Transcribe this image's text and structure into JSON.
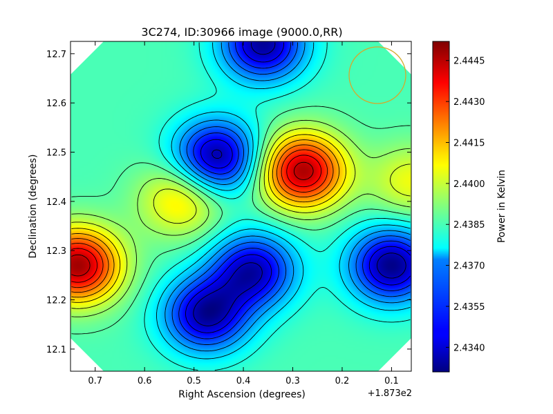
{
  "chart_data": {
    "type": "heatmap",
    "title": "3C274, ID:30966 image (9000.0,RR)",
    "xlabel": "Right Ascension (degrees)",
    "ylabel": "Declination (degrees)",
    "x_offset_label": "+1.873e2",
    "x_ticks": [
      "0.7",
      "0.6",
      "0.5",
      "0.4",
      "0.3",
      "0.2",
      "0.1"
    ],
    "y_ticks": [
      "12.1",
      "12.2",
      "12.3",
      "12.4",
      "12.5",
      "12.6",
      "12.7"
    ],
    "x_tick_values": [
      0.7,
      0.6,
      0.5,
      0.4,
      0.3,
      0.2,
      0.1
    ],
    "y_tick_values": [
      12.1,
      12.2,
      12.3,
      12.4,
      12.5,
      12.6,
      12.7
    ],
    "xlim": [
      0.75,
      0.06
    ],
    "ylim": [
      12.055,
      12.725
    ],
    "x_inverted": true,
    "colorbar_label": "Power in Kelvin",
    "colorbar_ticks": [
      "2.4445",
      "2.4430",
      "2.4415",
      "2.4400",
      "2.4385",
      "2.4370",
      "2.4355",
      "2.4340"
    ],
    "colorbar_tick_values": [
      2.4445,
      2.443,
      2.4415,
      2.44,
      2.4385,
      2.437,
      2.4355,
      2.434
    ],
    "colorbar_range": [
      2.4331,
      2.4452
    ],
    "colormap": "jet",
    "contours": true,
    "beam_circle_color": "#d4a92c",
    "features": [
      {
        "kind": "peak",
        "ra": 0.735,
        "dec": 12.27,
        "value": 2.4448
      },
      {
        "kind": "peak",
        "ra": 0.28,
        "dec": 12.462,
        "value": 2.4447
      },
      {
        "kind": "peak",
        "ra": 0.525,
        "dec": 12.405,
        "value": 2.4412
      },
      {
        "kind": "peak",
        "ra": 0.06,
        "dec": 12.44,
        "value": 2.4405
      },
      {
        "kind": "trough",
        "ra": 0.455,
        "dec": 12.49,
        "value": 2.4333
      },
      {
        "kind": "trough",
        "ra": 0.475,
        "dec": 12.17,
        "value": 2.4335
      },
      {
        "kind": "trough",
        "ra": 0.1,
        "dec": 12.27,
        "value": 2.4332
      },
      {
        "kind": "trough",
        "ra": 0.36,
        "dec": 12.72,
        "value": 2.4334
      },
      {
        "kind": "trough",
        "ra": 0.38,
        "dec": 12.26,
        "value": 2.4338
      }
    ]
  }
}
